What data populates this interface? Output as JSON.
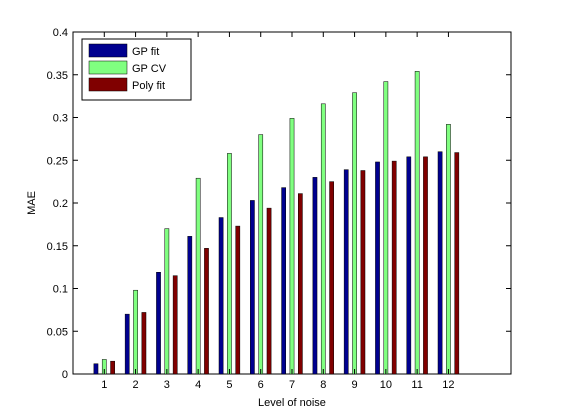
{
  "chart_data": {
    "type": "bar",
    "title": "",
    "xlabel": "Level of noise",
    "ylabel": "MAE",
    "categories": [
      "1",
      "2",
      "3",
      "4",
      "5",
      "6",
      "7",
      "8",
      "9",
      "10",
      "11",
      "12"
    ],
    "ylim": [
      0,
      0.4
    ],
    "yticks": [
      "0",
      "0.05",
      "0.1",
      "0.15",
      "0.2",
      "0.25",
      "0.3",
      "0.35",
      "0.4"
    ],
    "grid": false,
    "legend_position": "top-left",
    "series": [
      {
        "name": "GP fit",
        "color": "#00008f",
        "values": [
          0.012,
          0.07,
          0.119,
          0.161,
          0.183,
          0.203,
          0.218,
          0.23,
          0.239,
          0.248,
          0.254,
          0.26
        ]
      },
      {
        "name": "GP CV",
        "color": "#80ff80",
        "values": [
          0.017,
          0.098,
          0.17,
          0.229,
          0.258,
          0.28,
          0.299,
          0.316,
          0.329,
          0.342,
          0.354,
          0.292
        ]
      },
      {
        "name": "Poly fit",
        "color": "#800000",
        "values": [
          0.015,
          0.072,
          0.115,
          0.147,
          0.173,
          0.194,
          0.211,
          0.225,
          0.238,
          0.249,
          0.254,
          0.259
        ]
      }
    ]
  }
}
